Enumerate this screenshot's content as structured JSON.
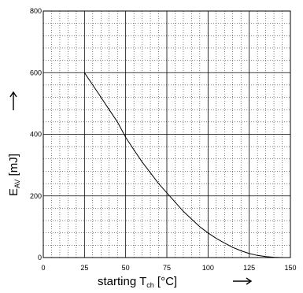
{
  "chart_data": {
    "type": "line",
    "title": "",
    "xlabel": {
      "main": "starting T",
      "sub": "ch",
      "unit": " [°C]"
    },
    "ylabel": {
      "main": "E",
      "sub": "AV",
      "unit": " [mJ]"
    },
    "xlim": [
      0,
      150
    ],
    "ylim": [
      0,
      800
    ],
    "x_ticks": [
      0,
      25,
      50,
      75,
      100,
      125,
      150
    ],
    "y_ticks": [
      0,
      200,
      400,
      600,
      800
    ],
    "x_tick_labels": [
      "0",
      "25",
      "50",
      "75",
      "100",
      "125",
      "150"
    ],
    "y_tick_labels": [
      "0",
      "200",
      "400",
      "600",
      "800"
    ],
    "grid": "major and minor",
    "legend": "none",
    "series": [
      {
        "color": "#000000",
        "x": [
          25,
          30,
          35,
          40,
          45,
          50,
          55,
          60,
          65,
          70,
          75,
          80,
          85,
          90,
          95,
          100,
          105,
          110,
          115,
          120,
          125,
          130,
          135,
          140,
          145
        ],
        "y": [
          600,
          560,
          520,
          480,
          440,
          390,
          350,
          310,
          275,
          240,
          210,
          180,
          150,
          125,
          100,
          80,
          62,
          47,
          33,
          22,
          13,
          7,
          3,
          1,
          0
        ]
      }
    ]
  }
}
